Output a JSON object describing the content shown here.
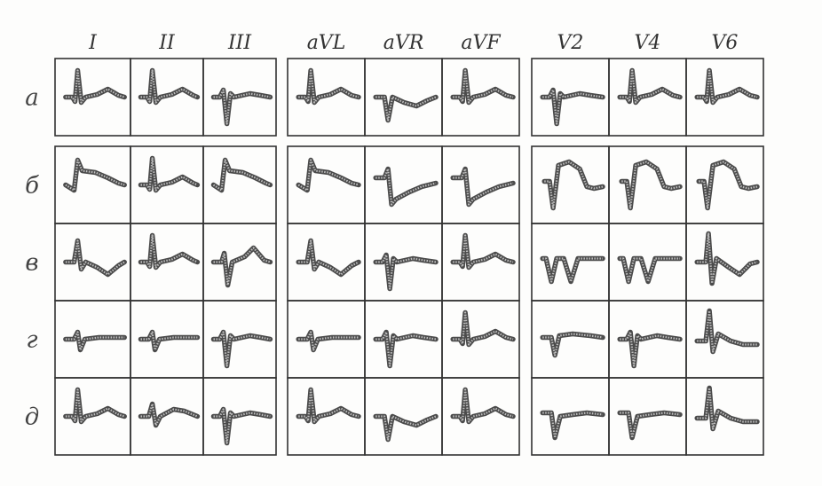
{
  "leads": [
    "I",
    "II",
    "III",
    "aVL",
    "aVR",
    "aVF",
    "V2",
    "V4",
    "V6"
  ],
  "rows": [
    "а",
    "б",
    "в",
    "г",
    "д"
  ],
  "colors": {
    "ink": "#2b2b2b",
    "paper": "#fdfdfc"
  },
  "waveform_types": [
    [
      "up",
      "up",
      "down",
      "up",
      "qs",
      "up",
      "down",
      "up",
      "up"
    ],
    [
      "stUp",
      "up",
      "stUp",
      "stUp",
      "stDown",
      "stDown",
      "qsDome",
      "qsDome",
      "qsDome"
    ],
    [
      "tInv",
      "up",
      "upT",
      "tInv",
      "down",
      "up",
      "wDip",
      "wDip",
      "tInvTall"
    ],
    [
      "small",
      "small",
      "down",
      "small",
      "down",
      "up",
      "flat",
      "down",
      "upDecay"
    ],
    [
      "up",
      "smallUp",
      "down",
      "up",
      "qs",
      "up",
      "qsFlat",
      "qsFlat",
      "upDecay"
    ]
  ]
}
